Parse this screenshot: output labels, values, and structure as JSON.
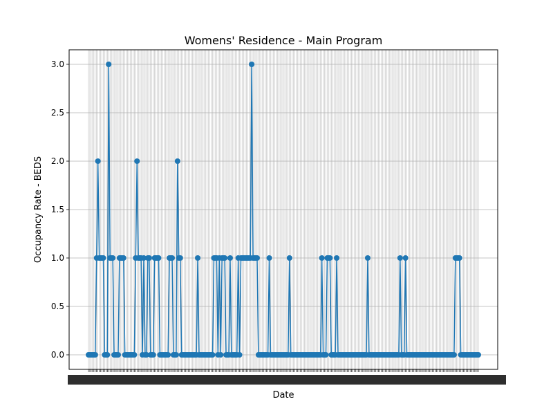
{
  "chart_data": {
    "type": "line",
    "title": "Womens' Residence - Main Program",
    "xlabel": "Date",
    "ylabel": "Occupancy Rate - BEDS",
    "ylim": [
      -0.15,
      3.15
    ],
    "yticks": [
      0.0,
      0.5,
      1.0,
      1.5,
      2.0,
      2.5,
      3.0
    ],
    "ytick_labels": [
      "0.0",
      "0.5",
      "1.0",
      "1.5",
      "2.0",
      "2.5",
      "3.0"
    ],
    "grid": true,
    "colors": {
      "series": "#1f77b4",
      "grid": "#b0b0b0"
    },
    "markers": "circle",
    "x_tick_labels_legible": false,
    "series": [
      {
        "values": [
          0,
          0,
          0,
          0,
          0,
          0,
          1,
          2,
          1,
          1,
          1,
          1,
          0,
          0,
          0,
          3,
          1,
          1,
          1,
          0,
          0,
          0,
          0,
          1,
          1,
          1,
          1,
          0,
          0,
          0,
          0,
          0,
          0,
          0,
          0,
          1,
          2,
          1,
          1,
          1,
          0,
          1,
          0,
          0,
          1,
          1,
          0,
          0,
          0,
          1,
          1,
          1,
          1,
          0,
          0,
          0,
          0,
          0,
          0,
          0,
          1,
          1,
          1,
          0,
          0,
          0,
          2,
          1,
          1,
          0,
          0,
          0,
          0,
          0,
          0,
          0,
          0,
          0,
          0,
          0,
          0,
          1,
          0,
          0,
          0,
          0,
          0,
          0,
          0,
          0,
          0,
          0,
          0,
          1,
          1,
          1,
          0,
          1,
          0,
          1,
          1,
          1,
          0,
          0,
          0,
          1,
          0,
          0,
          0,
          0,
          0,
          1,
          0,
          1,
          1,
          1,
          1,
          1,
          1,
          1,
          1,
          3,
          1,
          1,
          1,
          1,
          0,
          0,
          0,
          0,
          0,
          0,
          0,
          0,
          1,
          0,
          0,
          0,
          0,
          0,
          0,
          0,
          0,
          0,
          0,
          0,
          0,
          0,
          0,
          1,
          0,
          0,
          0,
          0,
          0,
          0,
          0,
          0,
          0,
          0,
          0,
          0,
          0,
          0,
          0,
          0,
          0,
          0,
          0,
          0,
          0,
          0,
          0,
          1,
          0,
          0,
          0,
          1,
          1,
          1,
          0,
          0,
          0,
          0,
          1,
          0,
          0,
          0,
          0,
          0,
          0,
          0,
          0,
          0,
          0,
          0,
          0,
          0,
          0,
          0,
          0,
          0,
          0,
          0,
          0,
          0,
          0,
          1,
          0,
          0,
          0,
          0,
          0,
          0,
          0,
          0,
          0,
          0,
          0,
          0,
          0,
          0,
          0,
          0,
          0,
          0,
          0,
          0,
          0,
          0,
          0,
          1,
          0,
          0,
          0,
          1,
          0,
          0,
          0,
          0,
          0,
          0,
          0,
          0,
          0,
          0,
          0,
          0,
          0,
          0,
          0,
          0,
          0,
          0,
          0,
          0,
          0,
          0,
          0,
          0,
          0,
          0,
          0,
          0,
          0,
          0,
          0,
          0,
          0,
          0,
          0,
          0,
          1,
          1,
          1,
          1,
          0,
          0,
          0,
          0,
          0,
          0,
          0,
          0,
          0,
          0,
          0,
          0,
          0,
          0
        ]
      }
    ]
  }
}
